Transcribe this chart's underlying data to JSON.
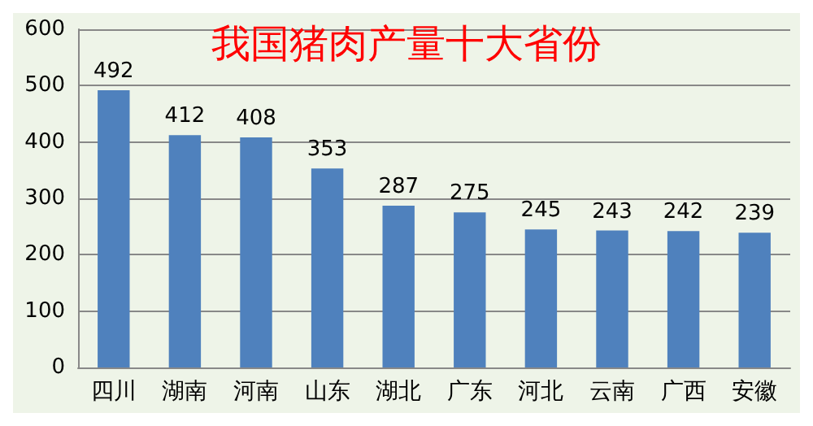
{
  "chart_data": {
    "type": "bar",
    "title": "我国猪肉产量十大省份",
    "categories": [
      "四川",
      "湖南",
      "河南",
      "山东",
      "湖北",
      "广东",
      "河北",
      "云南",
      "广西",
      "安徽"
    ],
    "values": [
      492,
      412,
      408,
      353,
      287,
      275,
      245,
      243,
      242,
      239
    ],
    "color": "#4f81bd",
    "ylim": [
      0,
      600
    ],
    "yticks": [
      0,
      100,
      200,
      300,
      400,
      500,
      600
    ],
    "grid": "y",
    "data_labels": true
  }
}
